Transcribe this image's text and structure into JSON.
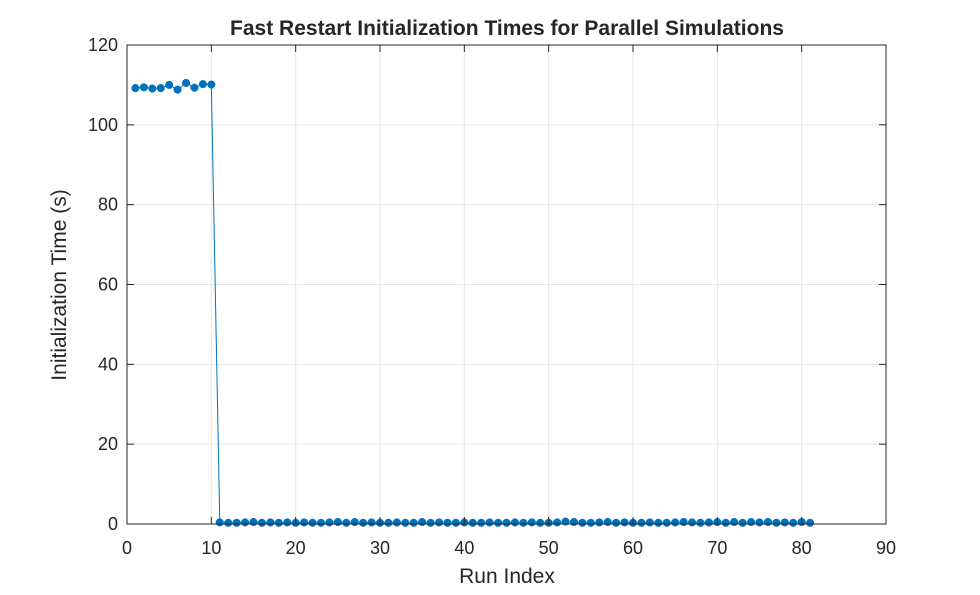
{
  "chart_data": {
    "type": "line",
    "title": "Fast Restart Initialization Times for Parallel Simulations",
    "xlabel": "Run Index",
    "ylabel": "Initialization Time (s)",
    "xlim": [
      0,
      90
    ],
    "ylim": [
      0,
      120
    ],
    "xticks": [
      0,
      10,
      20,
      30,
      40,
      50,
      60,
      70,
      80,
      90
    ],
    "yticks": [
      0,
      20,
      40,
      60,
      80,
      100,
      120
    ],
    "grid": true,
    "legend": "none",
    "colors": {
      "series": "#0072BD",
      "axes": "#262626",
      "grid": "#e6e6e6"
    },
    "series": [
      {
        "marker": "filled-circle",
        "x": [
          1,
          2,
          3,
          4,
          5,
          6,
          7,
          8,
          9,
          10,
          11,
          12,
          13,
          14,
          15,
          16,
          17,
          18,
          19,
          20,
          21,
          22,
          23,
          24,
          25,
          26,
          27,
          28,
          29,
          30,
          31,
          32,
          33,
          34,
          35,
          36,
          37,
          38,
          39,
          40,
          41,
          42,
          43,
          44,
          45,
          46,
          47,
          48,
          49,
          50,
          51,
          52,
          53,
          54,
          55,
          56,
          57,
          58,
          59,
          60,
          61,
          62,
          63,
          64,
          65,
          66,
          67,
          68,
          69,
          70,
          71,
          72,
          73,
          74,
          75,
          76,
          77,
          78,
          79,
          80,
          81
        ],
        "y": [
          109.2,
          109.4,
          109.1,
          109.2,
          110.0,
          108.8,
          110.5,
          109.3,
          110.2,
          110.1,
          0.4,
          0.3,
          0.3,
          0.4,
          0.5,
          0.3,
          0.4,
          0.3,
          0.4,
          0.3,
          0.4,
          0.3,
          0.3,
          0.4,
          0.5,
          0.3,
          0.5,
          0.3,
          0.4,
          0.3,
          0.3,
          0.4,
          0.3,
          0.3,
          0.5,
          0.3,
          0.4,
          0.3,
          0.3,
          0.4,
          0.3,
          0.3,
          0.4,
          0.3,
          0.3,
          0.4,
          0.3,
          0.4,
          0.3,
          0.3,
          0.4,
          0.6,
          0.5,
          0.3,
          0.3,
          0.4,
          0.5,
          0.3,
          0.4,
          0.3,
          0.3,
          0.4,
          0.3,
          0.3,
          0.4,
          0.5,
          0.4,
          0.3,
          0.4,
          0.5,
          0.3,
          0.5,
          0.3,
          0.5,
          0.4,
          0.5,
          0.3,
          0.4,
          0.3,
          0.5,
          0.3
        ]
      }
    ]
  }
}
